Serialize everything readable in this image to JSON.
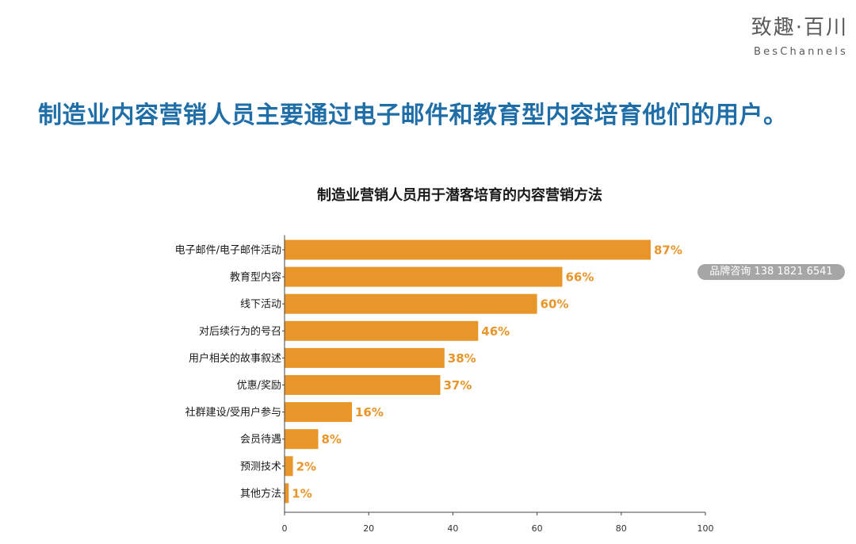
{
  "brand": {
    "name_cn": "致趣·百川",
    "name_en": "BesChannels"
  },
  "headline": "制造业内容营销人员主要通过电子邮件和教育型内容培育他们的用户。",
  "watermark": "品牌咨询 138 1821 6541",
  "chart_data": {
    "type": "bar",
    "orientation": "horizontal",
    "title": "制造业营销人员用于潜客培育的内容营销方法",
    "categories": [
      "电子邮件/电子邮件活动",
      "教育型内容",
      "线下活动",
      "对后续行为的号召",
      "用户相关的故事叙述",
      "优惠/奖励",
      "社群建设/受用户参与",
      "会员待遇",
      "预测技术",
      "其他方法"
    ],
    "values": [
      87,
      66,
      60,
      46,
      38,
      37,
      16,
      8,
      2,
      1
    ],
    "value_labels": [
      "87%",
      "66%",
      "60%",
      "46%",
      "38%",
      "37%",
      "16%",
      "8%",
      "2%",
      "1%"
    ],
    "xlim": [
      0,
      100
    ],
    "xticks": [
      0,
      20,
      40,
      60,
      80,
      100
    ],
    "xlabel": "",
    "ylabel": "",
    "grid": false,
    "bar_color": "#e8952a",
    "label_color": "#e8952a"
  }
}
